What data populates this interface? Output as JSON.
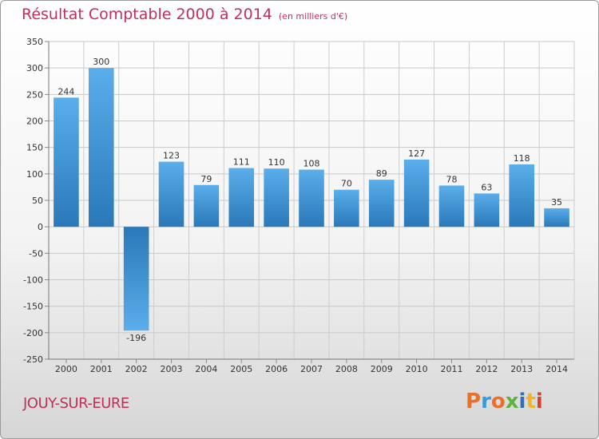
{
  "header": {
    "title": "Résultat Comptable 2000 à 2014",
    "unit": "(en milliers d'€)"
  },
  "footer": {
    "commune": "JOUY-SUR-EURE",
    "logo": "Proxiti"
  },
  "colors": {
    "bar_top": "#5aaeea",
    "bar_bottom": "#2a78b8",
    "title": "#c0305a"
  },
  "chart_data": {
    "type": "bar",
    "title": "Résultat Comptable 2000 à 2014",
    "ylabel": "en milliers d'€",
    "categories": [
      "2000",
      "2001",
      "2002",
      "2003",
      "2004",
      "2005",
      "2006",
      "2007",
      "2008",
      "2009",
      "2010",
      "2011",
      "2012",
      "2013",
      "2014"
    ],
    "values": [
      244,
      300,
      -196,
      123,
      79,
      111,
      110,
      108,
      70,
      89,
      127,
      78,
      63,
      118,
      35
    ],
    "value_labels": [
      "244",
      "300",
      "-196",
      "123",
      "79",
      "111",
      "110",
      "108",
      "70",
      "89",
      "127",
      "78",
      "63",
      "118",
      "35"
    ],
    "ylim": [
      -250,
      350
    ],
    "yticks": [
      350,
      300,
      250,
      200,
      150,
      100,
      50,
      0,
      -50,
      -100,
      -150,
      -200,
      -250
    ],
    "ytick_labels": [
      "350",
      "300",
      "250",
      "200",
      "150",
      "100",
      "50",
      "0",
      "-50",
      "-100",
      "-150",
      "-200",
      "-250"
    ],
    "grid": true
  }
}
